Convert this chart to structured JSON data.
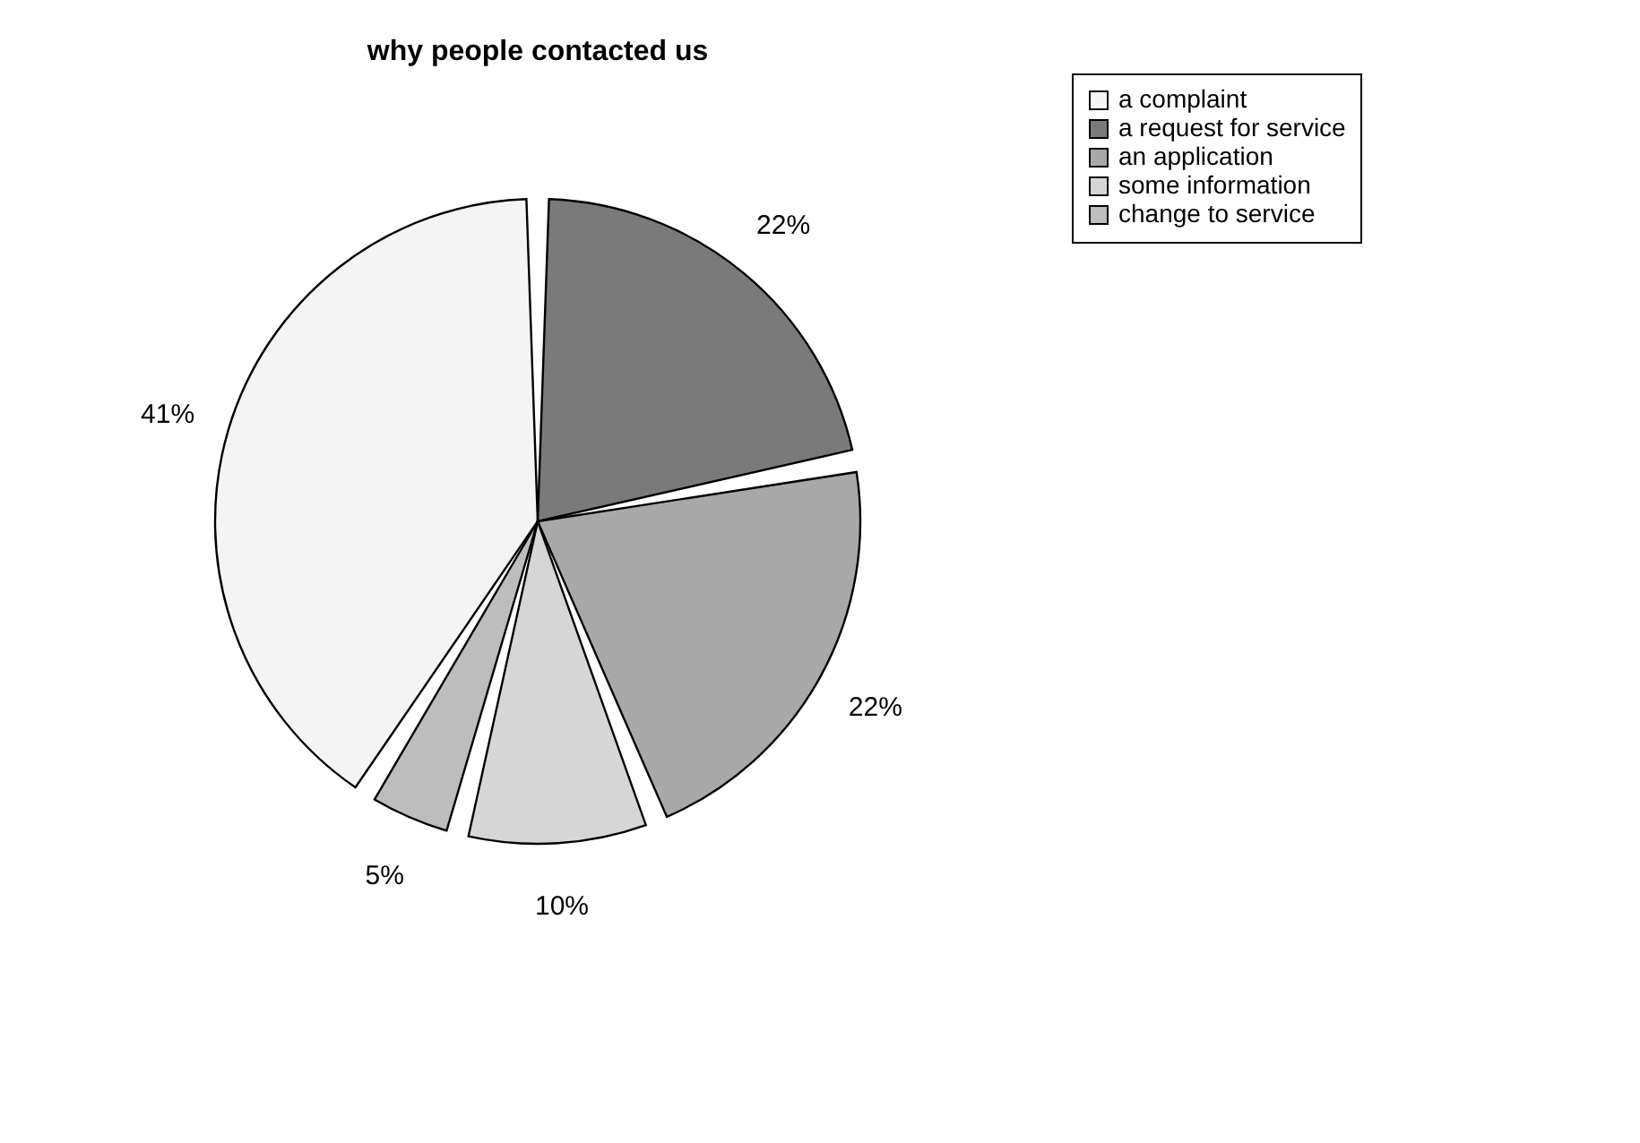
{
  "chart_data": {
    "type": "pie",
    "title": "why people contacted us",
    "categories": [
      "a complaint",
      "a request for service",
      "an application",
      "some information",
      "change to service"
    ],
    "values": [
      41,
      22,
      22,
      10,
      5
    ],
    "colors": [
      "#f4f4f4",
      "#7a7a7a",
      "#a8a8a8",
      "#d6d6d6",
      "#bdbdbd"
    ],
    "value_labels": [
      "41%",
      "22%",
      "22%",
      "10%",
      "5%"
    ],
    "legend": "right"
  }
}
